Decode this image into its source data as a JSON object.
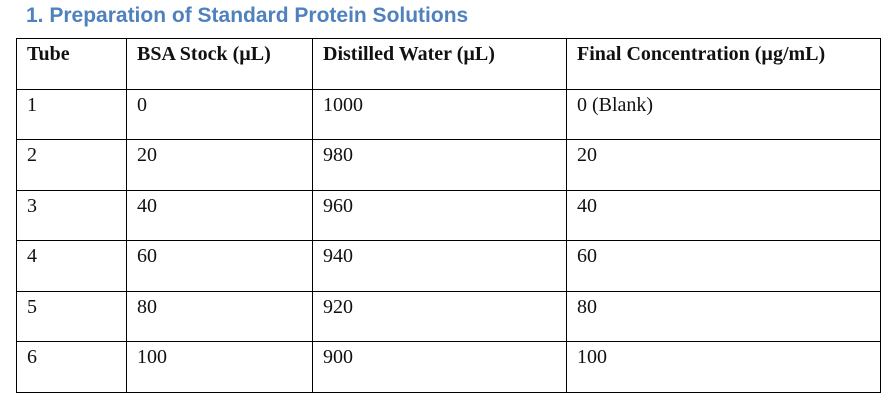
{
  "heading": "1. Preparation of Standard Protein Solutions",
  "table": {
    "header": [
      "Tube",
      "BSA Stock (µL)",
      "Distilled Water (µL)",
      "Final Concentration (µg/mL)"
    ],
    "rows": [
      [
        "1",
        "0",
        "1000",
        "0 (Blank)"
      ],
      [
        "2",
        "20",
        "980",
        "20"
      ],
      [
        "3",
        "40",
        "960",
        "40"
      ],
      [
        "4",
        "60",
        "940",
        "60"
      ],
      [
        "5",
        "80",
        "920",
        "80"
      ],
      [
        "6",
        "100",
        "900",
        "100"
      ]
    ]
  }
}
